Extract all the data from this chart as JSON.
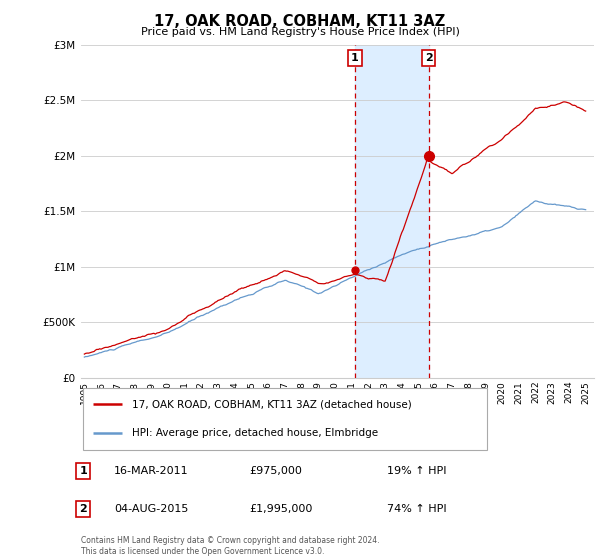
{
  "title": "17, OAK ROAD, COBHAM, KT11 3AZ",
  "subtitle": "Price paid vs. HM Land Registry's House Price Index (HPI)",
  "legend_line1": "17, OAK ROAD, COBHAM, KT11 3AZ (detached house)",
  "legend_line2": "HPI: Average price, detached house, Elmbridge",
  "annotation1_date": "16-MAR-2011",
  "annotation1_price": "£975,000",
  "annotation1_hpi": "19% ↑ HPI",
  "annotation1_year": 2011.2,
  "annotation1_value": 975000,
  "annotation2_date": "04-AUG-2015",
  "annotation2_price": "£1,995,000",
  "annotation2_hpi": "74% ↑ HPI",
  "annotation2_year": 2015.6,
  "annotation2_value": 1995000,
  "footer": "Contains HM Land Registry data © Crown copyright and database right 2024.\nThis data is licensed under the Open Government Licence v3.0.",
  "red_color": "#cc0000",
  "blue_color": "#6699cc",
  "highlight_color": "#ddeeff",
  "ylim": [
    0,
    3000000
  ],
  "yticks": [
    0,
    500000,
    1000000,
    1500000,
    2000000,
    2500000,
    3000000
  ],
  "xmin": 1994.8,
  "xmax": 2025.5
}
